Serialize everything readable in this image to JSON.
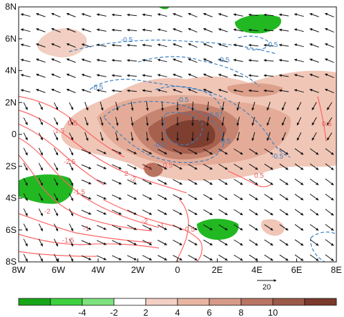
{
  "axes": {
    "x_ticks": [
      "8W",
      "6W",
      "4W",
      "2W",
      "0",
      "2E",
      "4E",
      "6E",
      "8E"
    ],
    "y_ticks": [
      "8N",
      "6N",
      "4N",
      "2N",
      "0",
      "2S",
      "4S",
      "6S",
      "8S"
    ]
  },
  "vector_reference": {
    "label": "20"
  },
  "colorbar": {
    "labels": [
      "-4",
      "-2",
      "2",
      "4",
      "6",
      "8",
      "10"
    ],
    "colors": [
      "#17a617",
      "#3dd13d",
      "#7ee27e",
      "#ffffff",
      "#f4d0c4",
      "#e9b5a3",
      "#d69b88",
      "#b97563",
      "#9b5a48",
      "#7a3a2c"
    ]
  },
  "contour_labels": {
    "blue": [
      "-0.5",
      "-0.5",
      "-0.5",
      "-0.5",
      "-0.5",
      "-0.5",
      "-0.5",
      "0.5",
      "-0.5"
    ],
    "red": [
      "0.5",
      "-1.5",
      "-2.5",
      "2",
      "-2",
      "1.5",
      "-1.5",
      "0.5",
      "-2",
      "-1",
      "0.5",
      "-2",
      "0.5",
      "0.5",
      "1",
      "-1.5"
    ]
  },
  "colors": {
    "positive_shading": "#e8b9a6",
    "negative_shading": "#22b822",
    "blue_contour": "#3a7fc0",
    "red_contour": "#ff6060"
  }
}
